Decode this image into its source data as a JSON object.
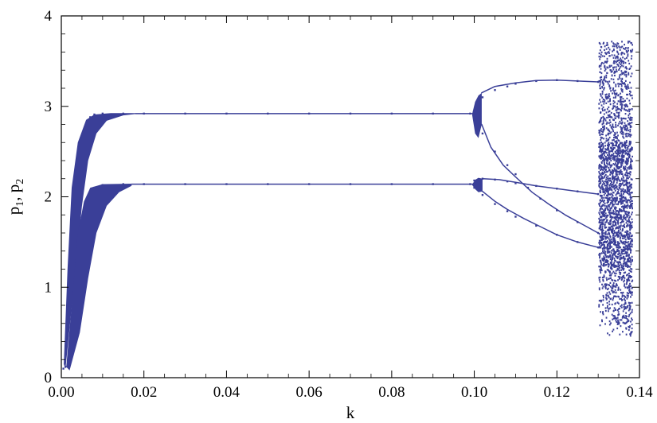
{
  "chart_data": {
    "type": "scatter",
    "title": "",
    "xlabel": "k",
    "ylabel": "p",
    "ylabel_subscripts": [
      "1",
      "2"
    ],
    "xlim": [
      0.0,
      0.14
    ],
    "ylim": [
      0,
      4
    ],
    "x_ticks": [
      "0.00",
      "0.02",
      "0.04",
      "0.06",
      "0.08",
      "0.10",
      "0.12",
      "0.14"
    ],
    "y_ticks": [
      "0",
      "1",
      "2",
      "3",
      "4"
    ],
    "grid": false,
    "legend": "none",
    "point_color": "#3a3f98",
    "series": [
      {
        "name": "",
        "description_of_structure": [],
        "points": [
          [
            0.0005,
            0.1
          ],
          [
            0.001,
            0.35
          ],
          [
            0.0015,
            0.8
          ],
          [
            0.002,
            1.3
          ],
          [
            0.0025,
            1.75
          ],
          [
            0.003,
            2.1
          ],
          [
            0.004,
            2.45
          ],
          [
            0.005,
            2.65
          ],
          [
            0.006,
            2.8
          ],
          [
            0.007,
            2.88
          ],
          [
            0.008,
            2.91
          ],
          [
            0.01,
            2.92
          ],
          [
            0.015,
            2.92
          ],
          [
            0.02,
            2.92
          ],
          [
            0.03,
            2.92
          ],
          [
            0.04,
            2.92
          ],
          [
            0.05,
            2.92
          ],
          [
            0.06,
            2.92
          ],
          [
            0.07,
            2.92
          ],
          [
            0.08,
            2.92
          ],
          [
            0.09,
            2.92
          ],
          [
            0.099,
            2.92
          ],
          [
            0.001,
            0.12
          ],
          [
            0.002,
            0.3
          ],
          [
            0.003,
            0.7
          ],
          [
            0.004,
            1.2
          ],
          [
            0.005,
            1.6
          ],
          [
            0.006,
            1.9
          ],
          [
            0.007,
            2.05
          ],
          [
            0.008,
            2.1
          ],
          [
            0.01,
            2.13
          ],
          [
            0.015,
            2.14
          ],
          [
            0.02,
            2.14
          ],
          [
            0.03,
            2.14
          ],
          [
            0.04,
            2.14
          ],
          [
            0.05,
            2.14
          ],
          [
            0.06,
            2.14
          ],
          [
            0.07,
            2.14
          ],
          [
            0.08,
            2.14
          ],
          [
            0.09,
            2.14
          ],
          [
            0.099,
            2.14
          ],
          [
            0.1,
            2.95
          ],
          [
            0.102,
            3.1
          ],
          [
            0.105,
            3.18
          ],
          [
            0.108,
            3.22
          ],
          [
            0.11,
            3.25
          ],
          [
            0.115,
            3.28
          ],
          [
            0.12,
            3.29
          ],
          [
            0.125,
            3.28
          ],
          [
            0.13,
            3.27
          ],
          [
            0.1,
            2.85
          ],
          [
            0.102,
            2.7
          ],
          [
            0.105,
            2.5
          ],
          [
            0.108,
            2.35
          ],
          [
            0.11,
            2.25
          ],
          [
            0.113,
            2.1
          ],
          [
            0.116,
            1.98
          ],
          [
            0.12,
            1.85
          ],
          [
            0.125,
            1.72
          ],
          [
            0.13,
            1.6
          ],
          [
            0.1,
            2.18
          ],
          [
            0.102,
            2.2
          ],
          [
            0.105,
            2.19
          ],
          [
            0.108,
            2.17
          ],
          [
            0.11,
            2.15
          ],
          [
            0.115,
            2.12
          ],
          [
            0.12,
            2.09
          ],
          [
            0.125,
            2.06
          ],
          [
            0.13,
            2.03
          ],
          [
            0.1,
            2.1
          ],
          [
            0.102,
            2.02
          ],
          [
            0.105,
            1.92
          ],
          [
            0.108,
            1.84
          ],
          [
            0.11,
            1.78
          ],
          [
            0.115,
            1.68
          ],
          [
            0.12,
            1.58
          ],
          [
            0.125,
            1.5
          ],
          [
            0.13,
            1.44
          ],
          [
            0.1305,
            3.2
          ],
          [
            0.131,
            1.9
          ],
          [
            0.1315,
            2.4
          ],
          [
            0.132,
            3.1
          ],
          [
            0.132,
            1.3
          ],
          [
            0.1325,
            2.7
          ],
          [
            0.133,
            1.1
          ],
          [
            0.133,
            3.4
          ],
          [
            0.1335,
            2.2
          ],
          [
            0.134,
            0.9
          ],
          [
            0.134,
            3.0
          ],
          [
            0.1345,
            1.6
          ],
          [
            0.135,
            2.9
          ],
          [
            0.135,
            0.7
          ],
          [
            0.1355,
            3.5
          ],
          [
            0.136,
            1.4
          ],
          [
            0.136,
            2.5
          ],
          [
            0.1365,
            0.6
          ],
          [
            0.137,
            3.6
          ],
          [
            0.137,
            1.9
          ],
          [
            0.1375,
            2.8
          ],
          [
            0.138,
            0.5
          ],
          [
            0.138,
            3.7
          ],
          [
            0.138,
            2.1
          ]
        ]
      }
    ]
  }
}
